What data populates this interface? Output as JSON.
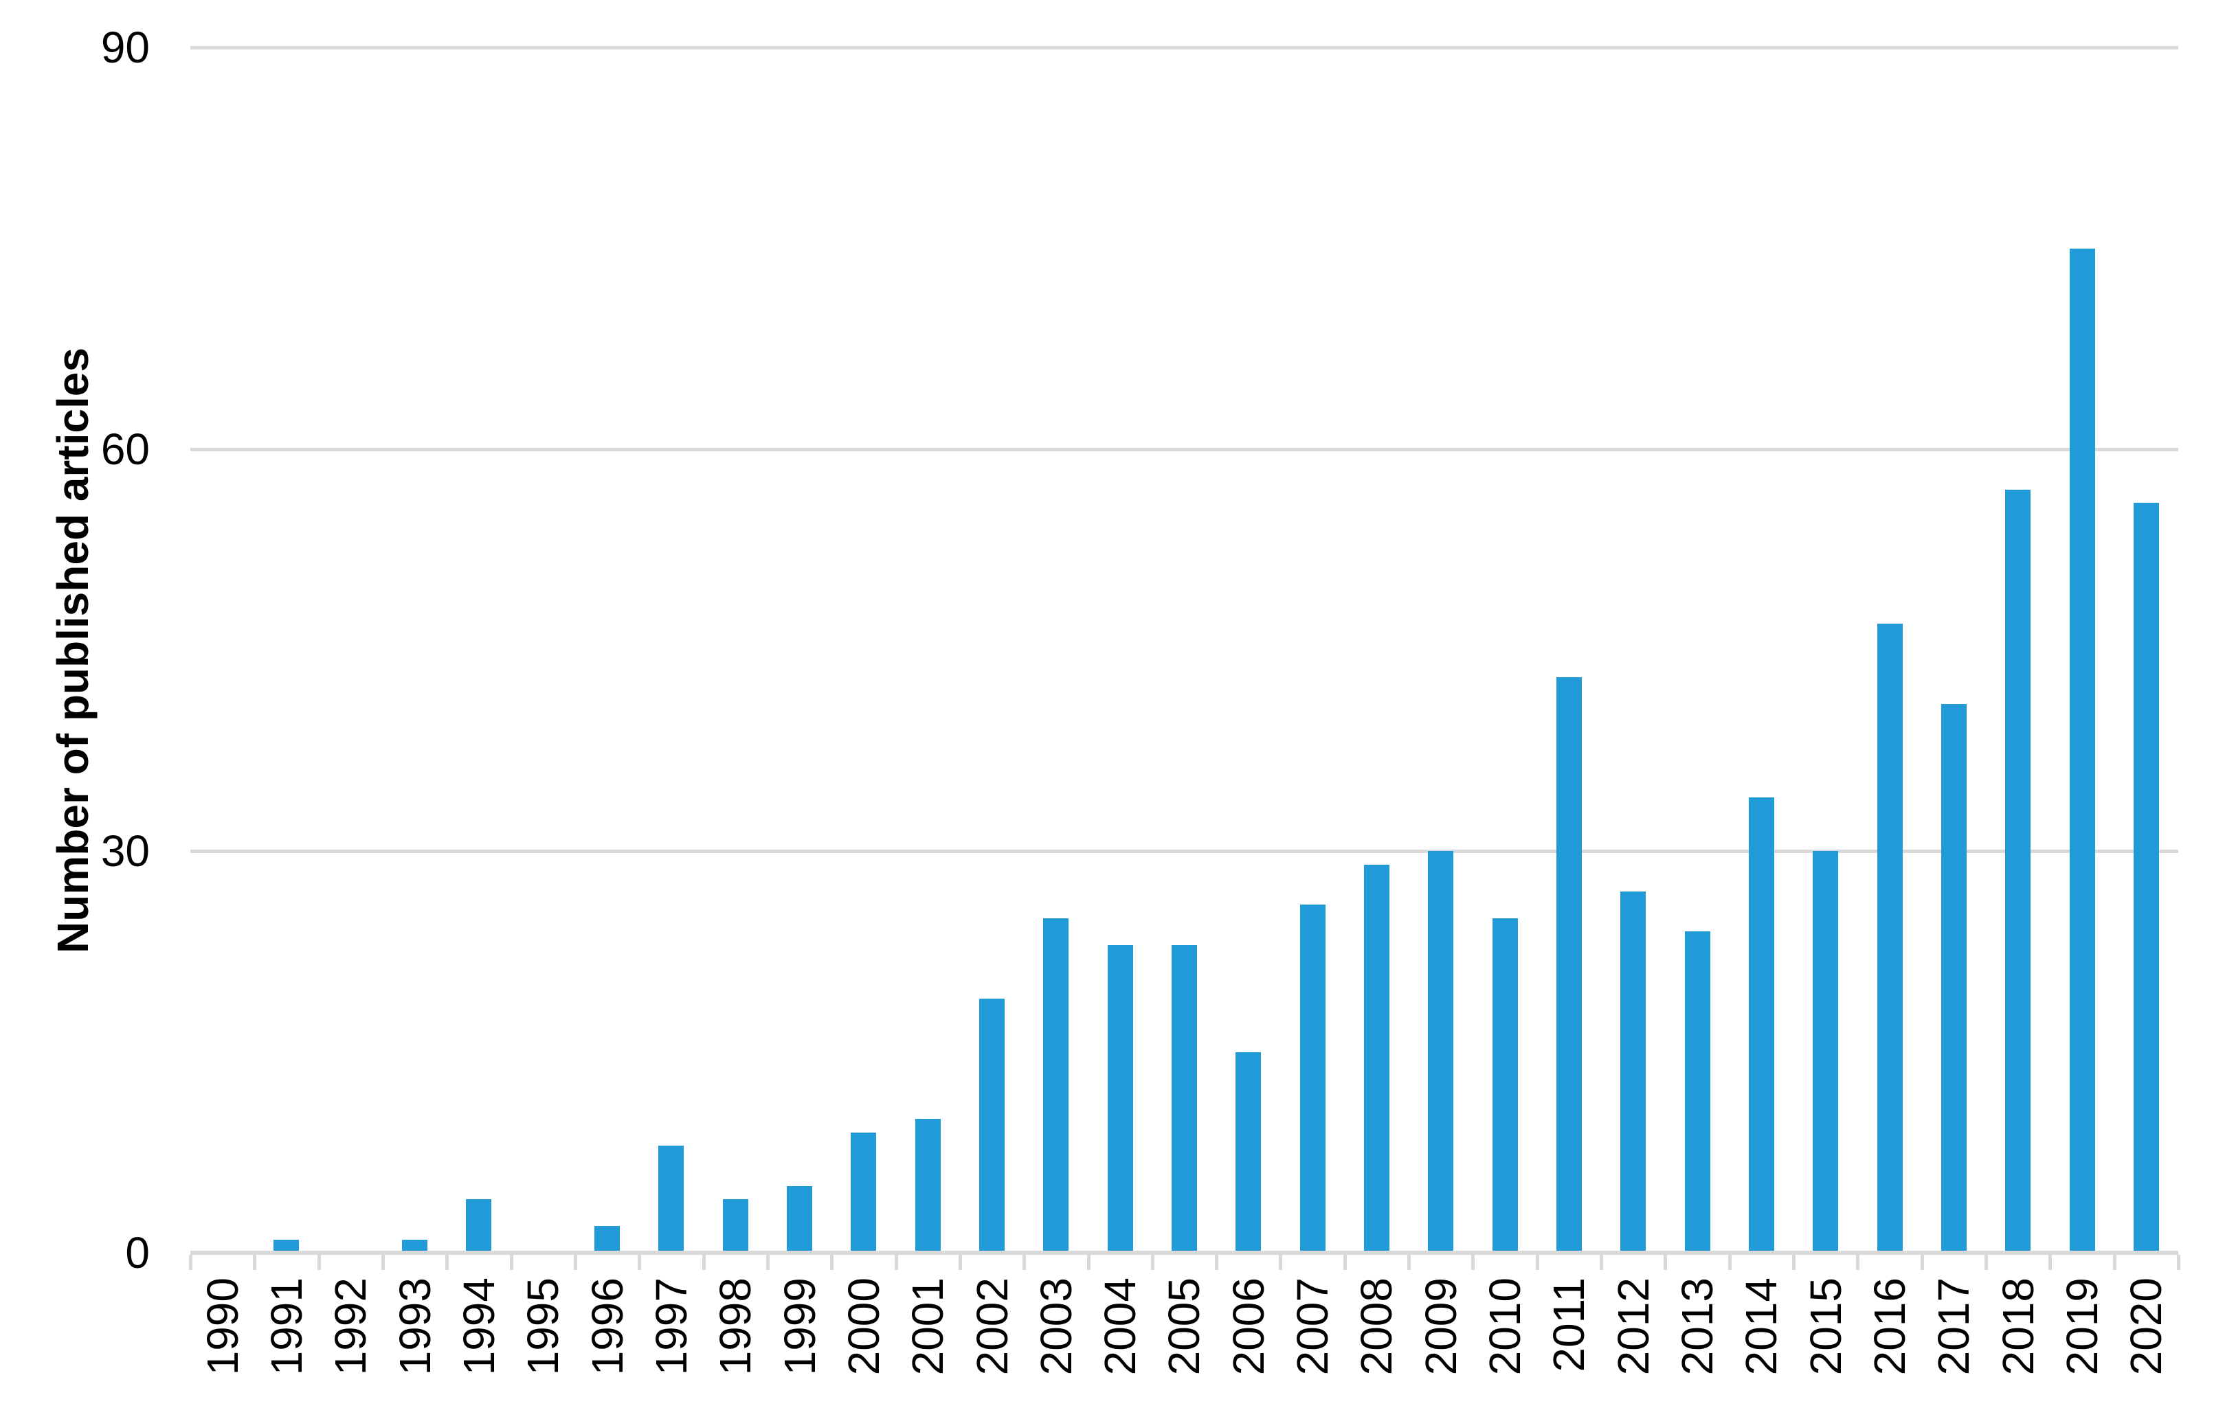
{
  "chart_data": {
    "type": "bar",
    "title": "",
    "xlabel": "",
    "ylabel": "Number of published articles",
    "categories": [
      "1990",
      "1991",
      "1992",
      "1993",
      "1994",
      "1995",
      "1996",
      "1997",
      "1998",
      "1999",
      "2000",
      "2001",
      "2002",
      "2003",
      "2004",
      "2005",
      "2006",
      "2007",
      "2008",
      "2009",
      "2010",
      "2011",
      "2012",
      "2013",
      "2014",
      "2015",
      "2016",
      "2017",
      "2018",
      "2019",
      "2020"
    ],
    "values": [
      0,
      1,
      0,
      1,
      4,
      0,
      2,
      8,
      4,
      5,
      9,
      10,
      19,
      25,
      23,
      23,
      15,
      26,
      29,
      30,
      25,
      43,
      27,
      24,
      34,
      30,
      47,
      41,
      57,
      75,
      56
    ],
    "ylim": [
      0,
      90
    ],
    "yticks": [
      0,
      30,
      60,
      90
    ],
    "grid": "horizontal",
    "legend_position": "none",
    "bar_color": "#219bd8",
    "gridline_color": "#d9d9d9",
    "axis_color": "#d9d9d9",
    "label_color": "#000000"
  }
}
